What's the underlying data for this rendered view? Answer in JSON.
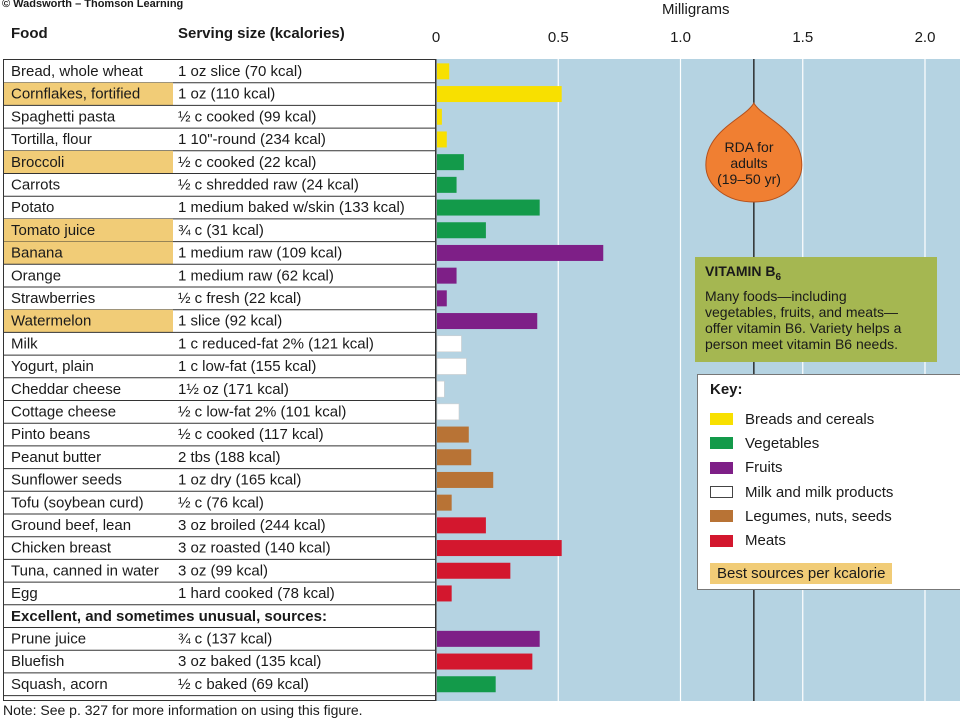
{
  "copyright": "© Wadsworth – Thomson Learning",
  "headers": {
    "food": "Food",
    "serving": "Serving size (kcalories)"
  },
  "note": "Note: See p. 327 for more information on using this figure.",
  "rda": {
    "text_lines": [
      "RDA for",
      "adults",
      "(19–50 yr)"
    ],
    "value": 1.3
  },
  "vitamin_box": {
    "title_main": "VITAMIN B",
    "title_sub": "6",
    "desc_lines": [
      "Many foods—including",
      "vegetables, fruits, and meats—",
      "offer vitamin B6. Variety helps a",
      "person meet vitamin B6 needs."
    ]
  },
  "key": {
    "title": "Key:",
    "items": [
      {
        "group": "breads",
        "label": "Breads and cereals"
      },
      {
        "group": "vegetables",
        "label": "Vegetables"
      },
      {
        "group": "fruits",
        "label": "Fruits"
      },
      {
        "group": "milk",
        "label": "Milk and milk products"
      },
      {
        "group": "legumes",
        "label": "Legumes, nuts, seeds"
      },
      {
        "group": "meats",
        "label": "Meats"
      }
    ],
    "best_sources": "Best sources per kcalorie"
  },
  "colors": {
    "breads": "#f8e000",
    "vegetables": "#139a4a",
    "fruits": "#7e1f87",
    "milk": "#ffffff",
    "legumes": "#b87335",
    "meats": "#d3172e",
    "highlight": "#f1cc77",
    "plot_bg": "#b5d3e2",
    "rda_drop": "#f07f32",
    "key_box_bg": "#a5b751"
  },
  "chart_data": {
    "type": "bar",
    "orientation": "horizontal",
    "xlabel": "Milligrams",
    "xlim": [
      0,
      2.15
    ],
    "xticks": [
      "0",
      "0.5",
      "1.0",
      "1.5",
      "2.0"
    ],
    "xtick_values": [
      0,
      0.5,
      1.0,
      1.5,
      2.0
    ],
    "grid": true,
    "rda_line": 1.3,
    "section_label": "Excellent, and sometimes unusual, sources:",
    "rows": [
      {
        "food": "Bread, whole wheat",
        "serving": "1 oz slice (70 kcal)",
        "value": 0.05,
        "group": "breads",
        "best": false
      },
      {
        "food": "Cornflakes, fortified",
        "serving": "1 oz (110 kcal)",
        "value": 0.51,
        "group": "breads",
        "best": true
      },
      {
        "food": "Spaghetti pasta",
        "serving": "½ c cooked (99 kcal)",
        "value": 0.02,
        "group": "breads",
        "best": false
      },
      {
        "food": "Tortilla, flour",
        "serving": "1 10\"-round (234 kcal)",
        "value": 0.04,
        "group": "breads",
        "best": false
      },
      {
        "food": "Broccoli",
        "serving": "½ c cooked (22 kcal)",
        "value": 0.11,
        "group": "vegetables",
        "best": true
      },
      {
        "food": "Carrots",
        "serving": "½ c shredded raw (24 kcal)",
        "value": 0.08,
        "group": "vegetables",
        "best": false
      },
      {
        "food": "Potato",
        "serving": "1 medium baked w/skin (133 kcal)",
        "value": 0.42,
        "group": "vegetables",
        "best": false
      },
      {
        "food": "Tomato juice",
        "serving": "¾ c (31 kcal)",
        "value": 0.2,
        "group": "vegetables",
        "best": true
      },
      {
        "food": "Banana",
        "serving": "1 medium raw (109 kcal)",
        "value": 0.68,
        "group": "fruits",
        "best": true
      },
      {
        "food": "Orange",
        "serving": "1 medium raw (62 kcal)",
        "value": 0.08,
        "group": "fruits",
        "best": false
      },
      {
        "food": "Strawberries",
        "serving": "½ c fresh (22 kcal)",
        "value": 0.04,
        "group": "fruits",
        "best": false
      },
      {
        "food": "Watermelon",
        "serving": "1 slice (92 kcal)",
        "value": 0.41,
        "group": "fruits",
        "best": true
      },
      {
        "food": "Milk",
        "serving": "1 c reduced-fat 2% (121 kcal)",
        "value": 0.1,
        "group": "milk",
        "best": false
      },
      {
        "food": "Yogurt, plain",
        "serving": "1 c low-fat (155 kcal)",
        "value": 0.12,
        "group": "milk",
        "best": false
      },
      {
        "food": "Cheddar cheese",
        "serving": "1½ oz (171 kcal)",
        "value": 0.03,
        "group": "milk",
        "best": false
      },
      {
        "food": "Cottage cheese",
        "serving": "½ c low-fat 2% (101 kcal)",
        "value": 0.09,
        "group": "milk",
        "best": false
      },
      {
        "food": "Pinto beans",
        "serving": "½ c cooked (117 kcal)",
        "value": 0.13,
        "group": "legumes",
        "best": false
      },
      {
        "food": "Peanut butter",
        "serving": "2 tbs (188 kcal)",
        "value": 0.14,
        "group": "legumes",
        "best": false
      },
      {
        "food": "Sunflower seeds",
        "serving": "1 oz dry (165 kcal)",
        "value": 0.23,
        "group": "legumes",
        "best": false
      },
      {
        "food": "Tofu (soybean curd)",
        "serving": "½ c (76 kcal)",
        "value": 0.06,
        "group": "legumes",
        "best": false
      },
      {
        "food": "Ground beef, lean",
        "serving": "3 oz broiled (244 kcal)",
        "value": 0.2,
        "group": "meats",
        "best": false
      },
      {
        "food": "Chicken breast",
        "serving": "3 oz roasted (140 kcal)",
        "value": 0.51,
        "group": "meats",
        "best": false
      },
      {
        "food": "Tuna, canned in water",
        "serving": "3 oz (99 kcal)",
        "value": 0.3,
        "group": "meats",
        "best": false
      },
      {
        "food": "Egg",
        "serving": "1 hard cooked (78 kcal)",
        "value": 0.06,
        "group": "meats",
        "best": false
      },
      {
        "food": "Prune juice",
        "serving": "¾ c (137 kcal)",
        "value": 0.42,
        "group": "fruits",
        "best": false,
        "section": "excellent"
      },
      {
        "food": "Bluefish",
        "serving": "3 oz baked (135 kcal)",
        "value": 0.39,
        "group": "meats",
        "best": false,
        "section": "excellent"
      },
      {
        "food": "Squash, acorn",
        "serving": "½ c baked (69 kcal)",
        "value": 0.24,
        "group": "vegetables",
        "best": false,
        "section": "excellent"
      }
    ]
  }
}
